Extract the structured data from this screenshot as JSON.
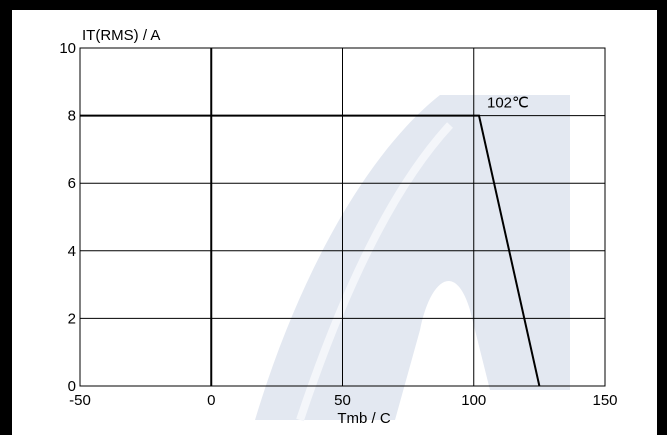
{
  "chart_data": {
    "type": "line",
    "title": "",
    "xlabel": "Tmb / C",
    "ylabel": "IT(RMS) / A",
    "xlim": [
      -50,
      150
    ],
    "ylim": [
      0,
      10
    ],
    "x_ticks": [
      -50,
      0,
      50,
      100,
      150
    ],
    "y_ticks": [
      0,
      2,
      4,
      6,
      8,
      10
    ],
    "x_tick_labels": [
      "-50",
      "0",
      "50",
      "100",
      "150"
    ],
    "y_tick_labels": [
      "0",
      "2",
      "4",
      "6",
      "8",
      "10"
    ],
    "grid": true,
    "series": [
      {
        "x": [
          -50,
          102,
          125
        ],
        "y": [
          8,
          8,
          0
        ]
      }
    ],
    "annotations": [
      {
        "text": "102℃",
        "x": 102,
        "y": 8
      }
    ],
    "colors": {
      "line": "#000000",
      "grid": "#000000",
      "watermark": "#e3e8f1"
    }
  }
}
